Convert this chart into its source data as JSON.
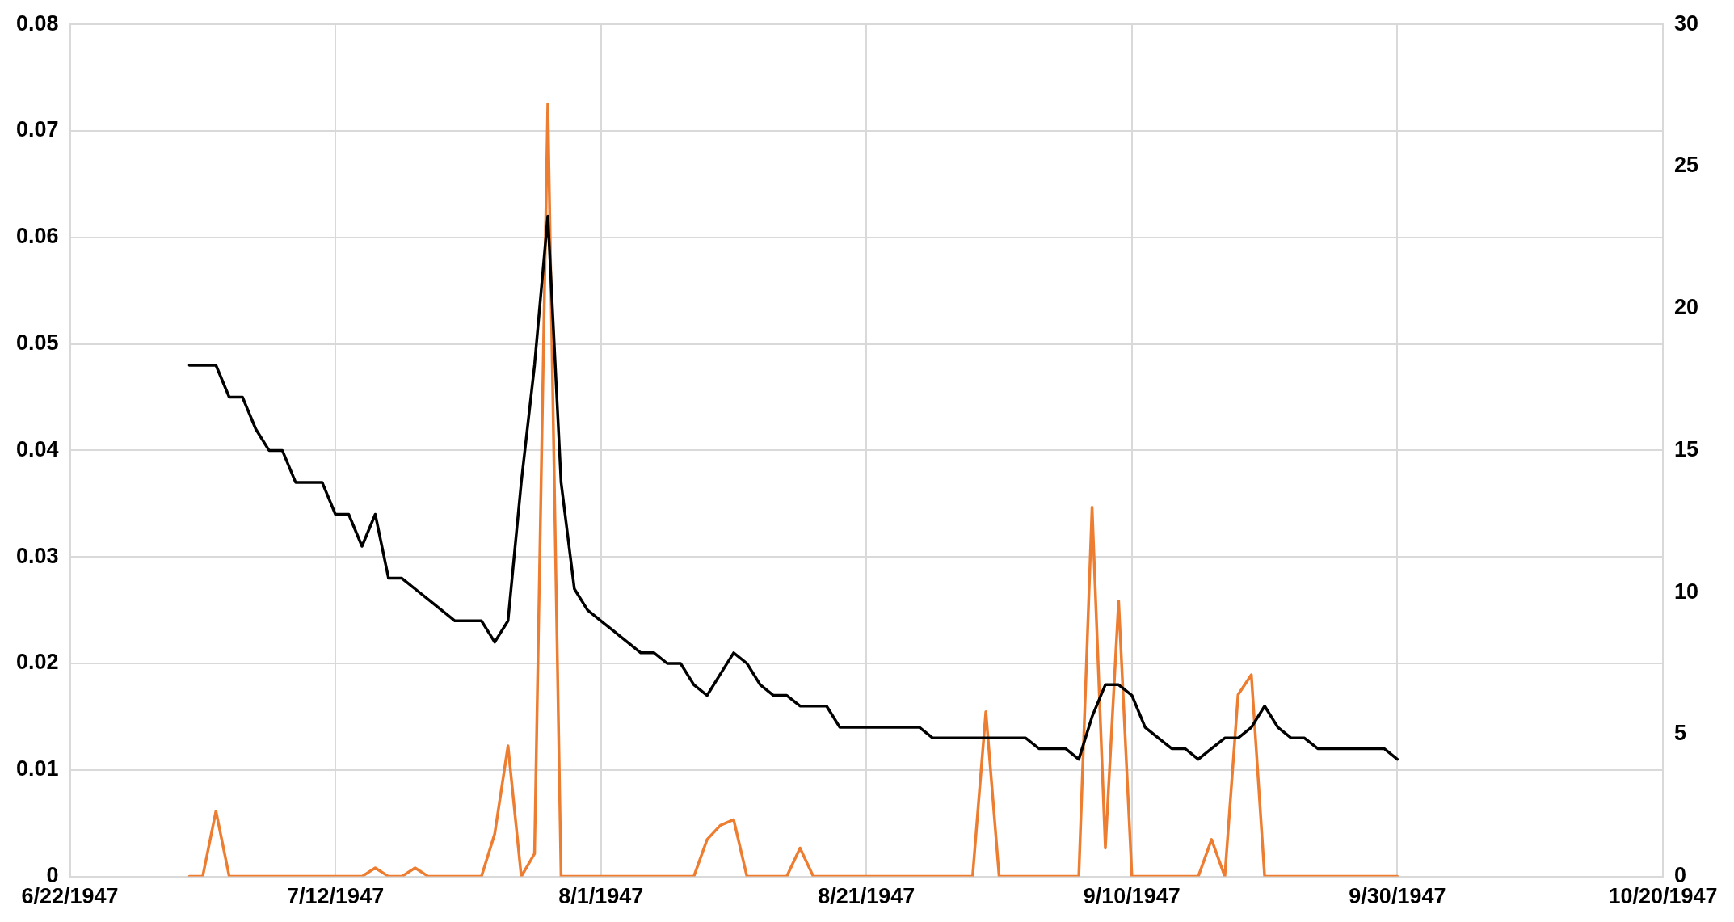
{
  "chart_data": {
    "type": "line",
    "x": [
      "1947-07-01",
      "1947-07-02",
      "1947-07-03",
      "1947-07-04",
      "1947-07-05",
      "1947-07-06",
      "1947-07-07",
      "1947-07-08",
      "1947-07-09",
      "1947-07-10",
      "1947-07-11",
      "1947-07-12",
      "1947-07-13",
      "1947-07-14",
      "1947-07-15",
      "1947-07-16",
      "1947-07-17",
      "1947-07-18",
      "1947-07-19",
      "1947-07-20",
      "1947-07-21",
      "1947-07-22",
      "1947-07-23",
      "1947-07-24",
      "1947-07-25",
      "1947-07-26",
      "1947-07-27",
      "1947-07-28",
      "1947-07-29",
      "1947-07-30",
      "1947-07-31",
      "1947-08-01",
      "1947-08-02",
      "1947-08-03",
      "1947-08-04",
      "1947-08-05",
      "1947-08-06",
      "1947-08-07",
      "1947-08-08",
      "1947-08-09",
      "1947-08-10",
      "1947-08-11",
      "1947-08-12",
      "1947-08-13",
      "1947-08-14",
      "1947-08-15",
      "1947-08-16",
      "1947-08-17",
      "1947-08-18",
      "1947-08-19",
      "1947-08-20",
      "1947-08-21",
      "1947-08-22",
      "1947-08-23",
      "1947-08-24",
      "1947-08-25",
      "1947-08-26",
      "1947-08-27",
      "1947-08-28",
      "1947-08-29",
      "1947-08-30",
      "1947-08-31",
      "1947-09-01",
      "1947-09-02",
      "1947-09-03",
      "1947-09-04",
      "1947-09-05",
      "1947-09-06",
      "1947-09-07",
      "1947-09-08",
      "1947-09-09",
      "1947-09-10",
      "1947-09-11",
      "1947-09-12",
      "1947-09-13",
      "1947-09-14",
      "1947-09-15",
      "1947-09-16",
      "1947-09-17",
      "1947-09-18",
      "1947-09-19",
      "1947-09-20",
      "1947-09-21",
      "1947-09-22",
      "1947-09-23",
      "1947-09-24",
      "1947-09-25",
      "1947-09-26",
      "1947-09-27",
      "1947-09-28",
      "1947-09-29",
      "1947-09-30"
    ],
    "series": [
      {
        "color": "#000000",
        "values": [
          0.048,
          0.048,
          0.048,
          0.045,
          0.045,
          0.042,
          0.04,
          0.04,
          0.037,
          0.037,
          0.037,
          0.034,
          0.034,
          0.031,
          0.034,
          0.028,
          0.028,
          0.027,
          0.026,
          0.025,
          0.024,
          0.024,
          0.024,
          0.022,
          0.024,
          0.037,
          0.048,
          0.062,
          0.037,
          0.027,
          0.025,
          0.024,
          0.023,
          0.022,
          0.021,
          0.021,
          0.02,
          0.02,
          0.018,
          0.017,
          0.019,
          0.021,
          0.02,
          0.018,
          0.017,
          0.017,
          0.016,
          0.016,
          0.016,
          0.014,
          0.014,
          0.014,
          0.014,
          0.014,
          0.014,
          0.014,
          0.013,
          0.013,
          0.013,
          0.013,
          0.013,
          0.013,
          0.013,
          0.013,
          0.012,
          0.012,
          0.012,
          0.011,
          0.015,
          0.018,
          0.018,
          0.017,
          0.014,
          0.013,
          0.012,
          0.012,
          0.011,
          0.012,
          0.013,
          0.013,
          0.014,
          0.016,
          0.014,
          0.013,
          0.013,
          0.012,
          0.012,
          0.012,
          0.012,
          0.012,
          0.012,
          0.011
        ]
      },
      {
        "color": "#ed7d31",
        "axis": "y2",
        "values": [
          0,
          0,
          2.3,
          0,
          0,
          0,
          0,
          0,
          0,
          0,
          0,
          0,
          0,
          0,
          0.3,
          0,
          0,
          0.3,
          0,
          0,
          0,
          0,
          0,
          1.5,
          4.6,
          0,
          0.8,
          27.2,
          0,
          0,
          0,
          0,
          0,
          0,
          0,
          0,
          0,
          0,
          0,
          1.3,
          1.8,
          2.0,
          0,
          0,
          0,
          0,
          1.0,
          0,
          0,
          0,
          0,
          0,
          0,
          0,
          0,
          0,
          0,
          0,
          0,
          0,
          5.8,
          0,
          0,
          0,
          0,
          0,
          0,
          0,
          13.0,
          1.0,
          9.7,
          0,
          0,
          0,
          0,
          0,
          0,
          1.3,
          0,
          6.4,
          7.1,
          0,
          0,
          0,
          0,
          0,
          0,
          0,
          0,
          0,
          0,
          0
        ]
      }
    ],
    "xlim": [
      "1947-06-22",
      "1947-10-20"
    ],
    "xticks": [
      {
        "value": "1947-06-22",
        "label": "6/22/1947"
      },
      {
        "value": "1947-07-12",
        "label": "7/12/1947"
      },
      {
        "value": "1947-08-01",
        "label": "8/1/1947"
      },
      {
        "value": "1947-08-21",
        "label": "8/21/1947"
      },
      {
        "value": "1947-09-10",
        "label": "9/10/1947"
      },
      {
        "value": "1947-09-30",
        "label": "9/30/1947"
      },
      {
        "value": "1947-10-20",
        "label": "10/20/1947"
      }
    ],
    "ylim": [
      0,
      0.08
    ],
    "yticks": [
      0,
      0.01,
      0.02,
      0.03,
      0.04,
      0.05,
      0.06,
      0.07,
      0.08
    ],
    "y2lim": [
      0,
      30
    ],
    "y2ticks": [
      0,
      5,
      10,
      15,
      20,
      25,
      30
    ],
    "grid": true,
    "legend": false,
    "marker": "none",
    "line_style": "solid"
  }
}
